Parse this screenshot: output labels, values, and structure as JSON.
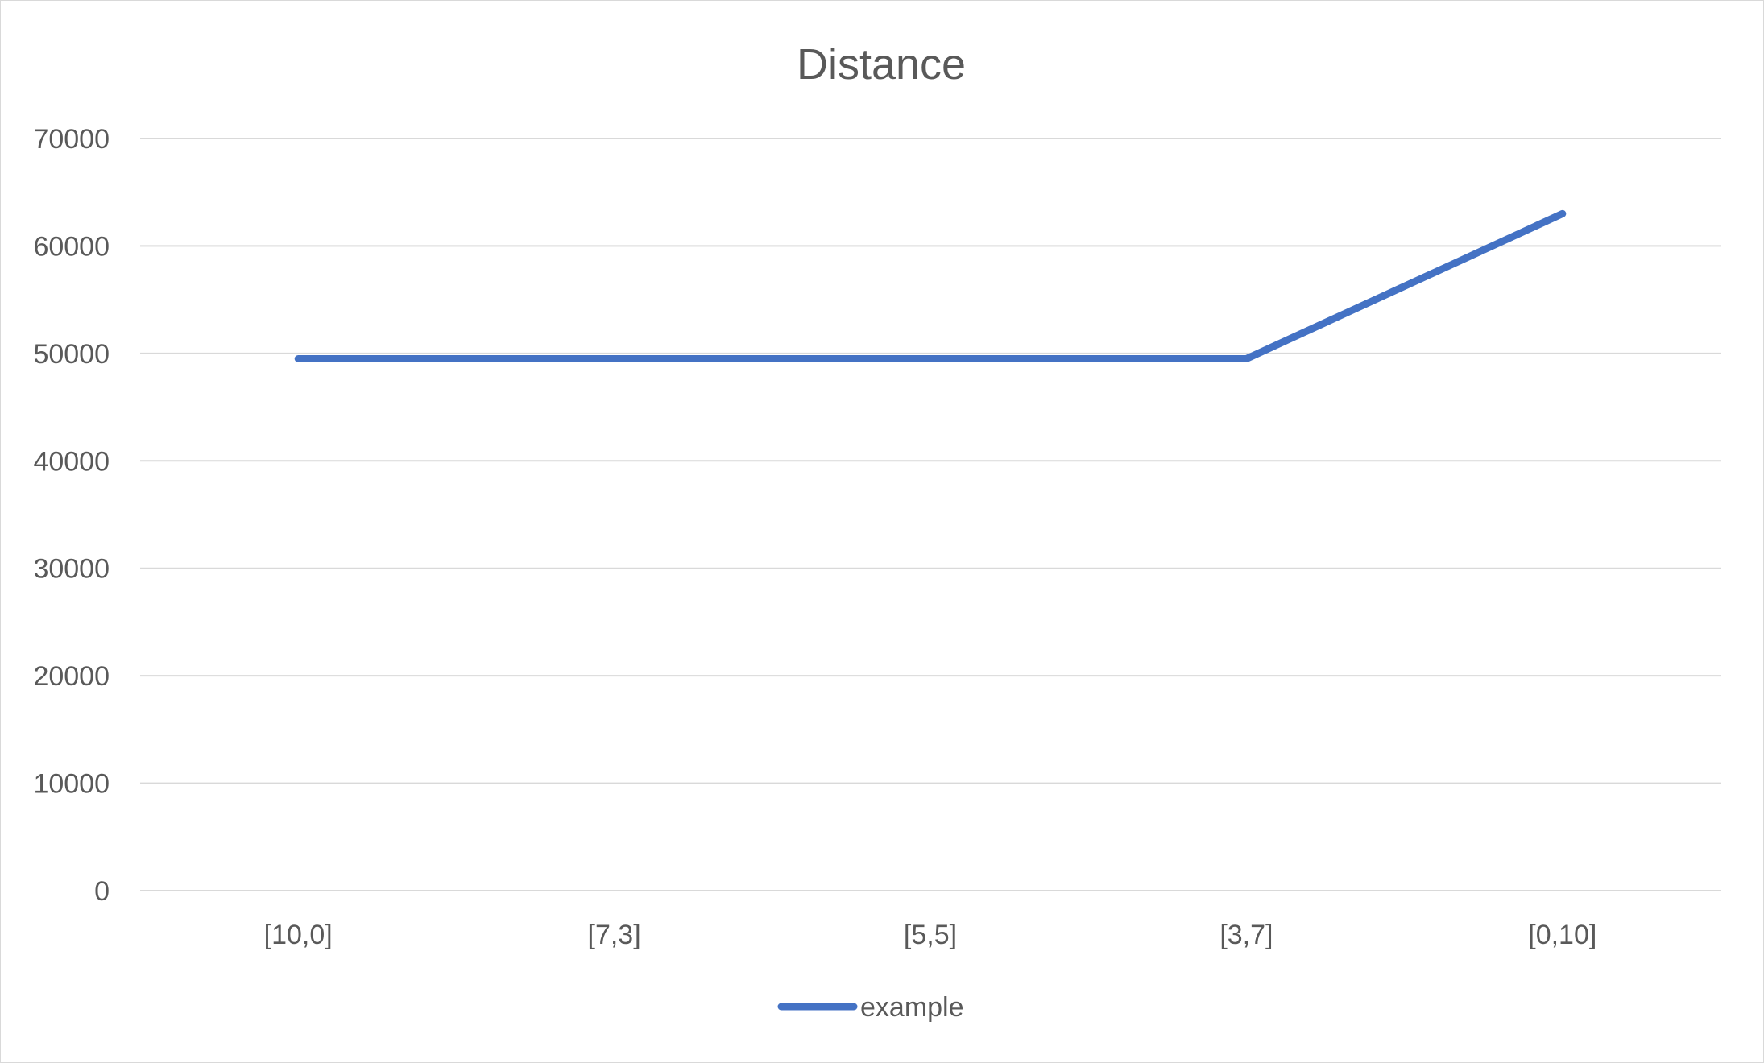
{
  "chart_data": {
    "type": "line",
    "title": "Distance",
    "xlabel": "",
    "ylabel": "",
    "categories": [
      "[10,0]",
      "[7,3]",
      "[5,5]",
      "[3,7]",
      "[0,10]"
    ],
    "series": [
      {
        "name": "example",
        "color": "#4472c4",
        "values": [
          49500,
          49500,
          49500,
          49500,
          63000
        ]
      }
    ],
    "ylim": [
      0,
      70000
    ],
    "yticks": [
      0,
      10000,
      20000,
      30000,
      40000,
      50000,
      60000,
      70000
    ],
    "grid": true,
    "legend": "bottom"
  }
}
